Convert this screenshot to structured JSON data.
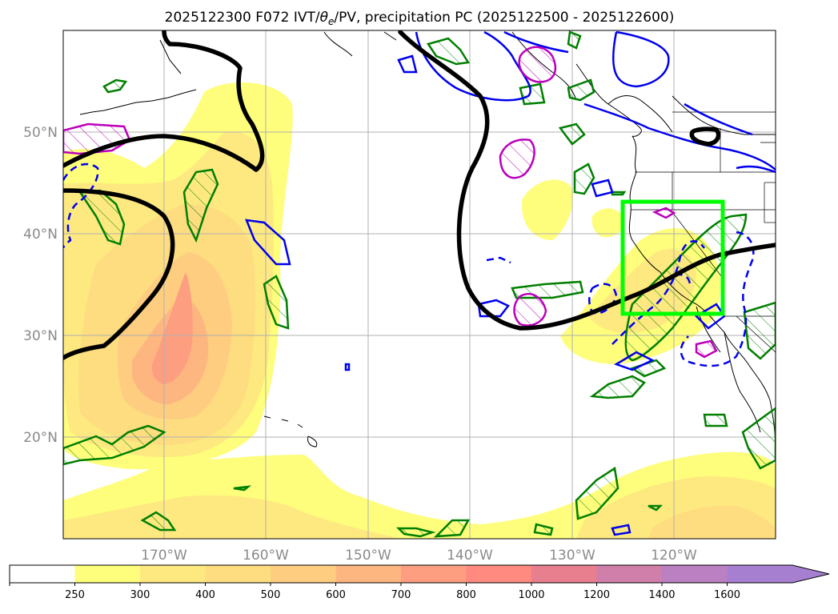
{
  "title": {
    "prefix": "2025122300 F072 IVT/",
    "theta_symbol": "θ",
    "theta_sub": "e",
    "suffix": "/PV, precipitation PC (2025122500 - 2025122600)"
  },
  "axes": {
    "lon_ticks": [
      "170°W",
      "160°W",
      "150°W",
      "140°W",
      "130°W",
      "120°W"
    ],
    "lat_ticks": [
      "50°N",
      "40°N",
      "30°N",
      "20°N"
    ],
    "lon_range_deg": [
      -180,
      -110
    ],
    "lat_range_deg": [
      10,
      60
    ],
    "grid": true
  },
  "colorbar": {
    "levels": [
      "250",
      "300",
      "400",
      "500",
      "600",
      "700",
      "800",
      "1000",
      "1200",
      "1400",
      "1600"
    ],
    "colors": [
      "#ffffff",
      "#fefe7c",
      "#fee980",
      "#fedc80",
      "#fecd80",
      "#feb680",
      "#fe9e80",
      "#fe8a80",
      "#e87f8f",
      "#cf7fa9",
      "#bb80c1",
      "#a77fd1"
    ],
    "extend": "max"
  },
  "colors": {
    "ivt_contour_blue": "#0000ee",
    "pv_contour_green": "#007f00",
    "theta_contour_magenta": "#bb00bb",
    "jet_line_black": "#000000",
    "focus_box_lime": "#00ff00",
    "grid": "#b0b0b0",
    "coast": "#000000"
  }
}
